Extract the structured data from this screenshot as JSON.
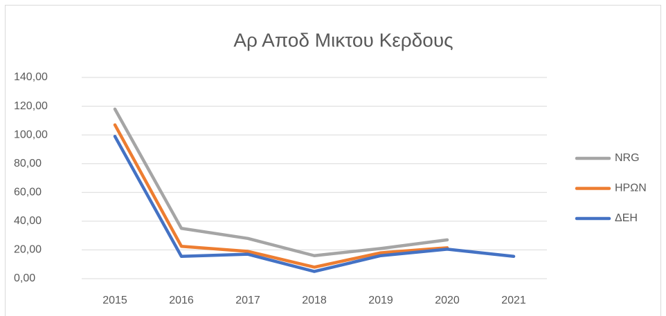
{
  "chart_data": {
    "type": "line",
    "title": "Αρ Αποδ Μικτου Κερδους",
    "categories": [
      "2015",
      "2016",
      "2017",
      "2018",
      "2019",
      "2020",
      "2021"
    ],
    "series": [
      {
        "name": "NRG",
        "color": "#a5a5a5",
        "values": [
          118,
          35,
          28,
          16,
          21,
          27,
          null
        ]
      },
      {
        "name": "ΗΡΩΝ",
        "color": "#ed7d31",
        "values": [
          107,
          22.5,
          19,
          8,
          18,
          21.5,
          null
        ]
      },
      {
        "name": "ΔΕΗ",
        "color": "#4472c4",
        "values": [
          99,
          15.5,
          17,
          5,
          16,
          20.5,
          15.5
        ]
      }
    ],
    "ylim": [
      0,
      140
    ],
    "yticks": [
      {
        "value": 0,
        "label": "0,00"
      },
      {
        "value": 20,
        "label": "20,00"
      },
      {
        "value": 40,
        "label": "40,00"
      },
      {
        "value": 60,
        "label": "60,00"
      },
      {
        "value": 80,
        "label": "80,00"
      },
      {
        "value": 100,
        "label": "100,00"
      },
      {
        "value": 120,
        "label": "120,00"
      },
      {
        "value": 140,
        "label": "140,00"
      }
    ],
    "grid": true,
    "legend": "right"
  }
}
